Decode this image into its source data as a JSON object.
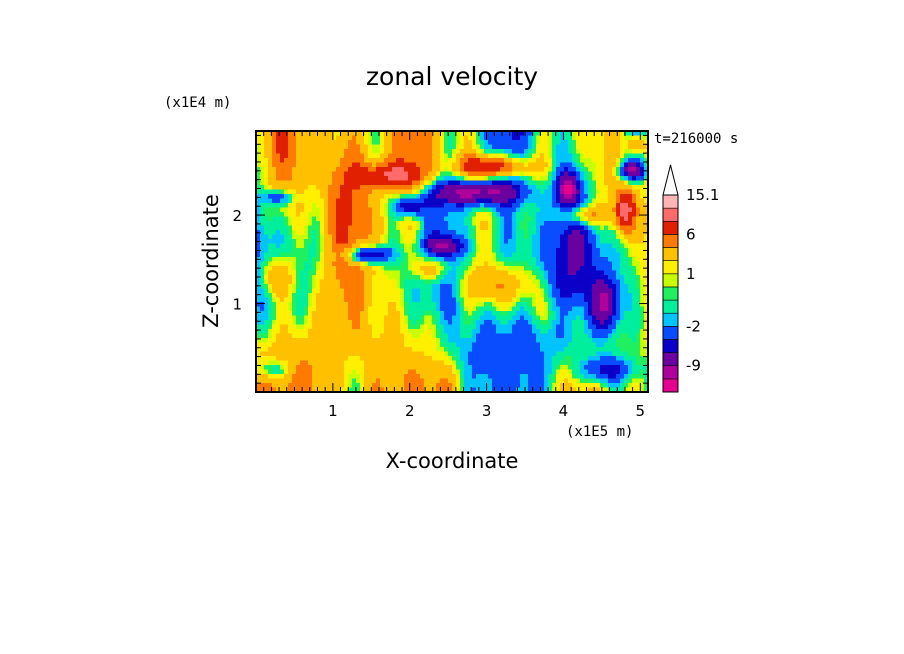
{
  "chart_data": {
    "type": "heatmap",
    "title": "zonal velocity",
    "xlabel": "X-coordinate",
    "ylabel": "Z-coordinate",
    "x_unit": "(x1E5 m)",
    "y_unit": "(x1E4 m)",
    "time_label": "t=216000 s",
    "xlim": [
      0.0,
      5.1
    ],
    "ylim": [
      0.0,
      2.95
    ],
    "xticks": [
      1,
      2,
      3,
      4,
      5
    ],
    "yticks": [
      1,
      2
    ],
    "colorbar": {
      "boundaries": [
        -15,
        -12,
        -9,
        -6,
        -4,
        -2,
        -1,
        0,
        0.5,
        1,
        2,
        4,
        6,
        9,
        12,
        15.1
      ],
      "colors": [
        "#e5008f",
        "#b0009c",
        "#6a00a0",
        "#0b00c8",
        "#0a4cff",
        "#00c3ff",
        "#00ef9c",
        "#20f060",
        "#c8ff00",
        "#fff000",
        "#ffc000",
        "#ff7a00",
        "#e02000",
        "#ff6a6a",
        "#ffb5b5"
      ],
      "extend_top": true,
      "labels": [
        {
          "value": 15.1,
          "text": "15.1"
        },
        {
          "value": 6,
          "text": "6"
        },
        {
          "value": 1,
          "text": "1"
        },
        {
          "value": -2,
          "text": "-2"
        },
        {
          "value": -9,
          "text": "-9"
        }
      ]
    },
    "field": {
      "base": 0.4,
      "components": [
        {
          "kind": "tilt",
          "x_amp": 2.6,
          "z_amp": 1.2,
          "z_len": 2.6
        },
        {
          "kind": "wave",
          "amp": 2.8,
          "kx": 3.2,
          "kz": 1.8,
          "phase": 0.7
        },
        {
          "kind": "wave",
          "amp": 1.6,
          "kx": 7.5,
          "kz": 0.9,
          "phase": 2.1
        },
        {
          "kind": "wave",
          "amp": 1.1,
          "kx": 13.0,
          "kz": 3.3,
          "phase": 0.3
        }
      ],
      "anomalies": [
        {
          "x": 2.85,
          "z": 2.25,
          "sx": 0.55,
          "sz": 0.14,
          "v": -11
        },
        {
          "x": 4.05,
          "z": 2.3,
          "sx": 0.13,
          "sz": 0.18,
          "v": -10
        },
        {
          "x": 2.0,
          "z": 2.1,
          "sx": 0.22,
          "sz": 0.12,
          "v": -8
        },
        {
          "x": 1.45,
          "z": 1.55,
          "sx": 0.28,
          "sz": 0.1,
          "v": -9
        },
        {
          "x": 2.45,
          "z": 1.65,
          "sx": 0.22,
          "sz": 0.1,
          "v": -7
        },
        {
          "x": 4.55,
          "z": 1.0,
          "sx": 0.18,
          "sz": 0.3,
          "v": -8
        },
        {
          "x": 4.9,
          "z": 2.5,
          "sx": 0.16,
          "sz": 0.1,
          "v": -10
        },
        {
          "x": 0.3,
          "z": 2.2,
          "sx": 0.2,
          "sz": 0.08,
          "v": -5
        },
        {
          "x": 3.1,
          "z": 2.55,
          "sx": 0.45,
          "sz": 0.13,
          "v": 9
        },
        {
          "x": 1.75,
          "z": 2.45,
          "sx": 0.4,
          "sz": 0.14,
          "v": 7
        },
        {
          "x": 4.25,
          "z": 2.0,
          "sx": 0.25,
          "sz": 0.12,
          "v": 7
        },
        {
          "x": 4.8,
          "z": 2.05,
          "sx": 0.14,
          "sz": 0.25,
          "v": 10
        },
        {
          "x": 4.95,
          "z": 2.8,
          "sx": 0.12,
          "sz": 0.1,
          "v": 6
        },
        {
          "x": 2.3,
          "z": 1.4,
          "sx": 0.22,
          "sz": 0.16,
          "v": 6
        },
        {
          "x": 3.2,
          "z": 1.2,
          "sx": 0.55,
          "sz": 0.25,
          "v": 5
        },
        {
          "x": 0.25,
          "z": 1.3,
          "sx": 0.25,
          "sz": 0.25,
          "v": 5
        },
        {
          "x": 2.8,
          "z": 0.45,
          "sx": 0.8,
          "sz": 0.25,
          "v": -1.5
        },
        {
          "x": 4.55,
          "z": 0.25,
          "sx": 0.35,
          "sz": 0.15,
          "v": -6
        },
        {
          "x": 0.2,
          "z": 0.25,
          "sx": 0.25,
          "sz": 0.12,
          "v": -4
        },
        {
          "x": 3.9,
          "z": 0.9,
          "sx": 0.4,
          "sz": 0.2,
          "v": 2.5
        }
      ]
    }
  }
}
